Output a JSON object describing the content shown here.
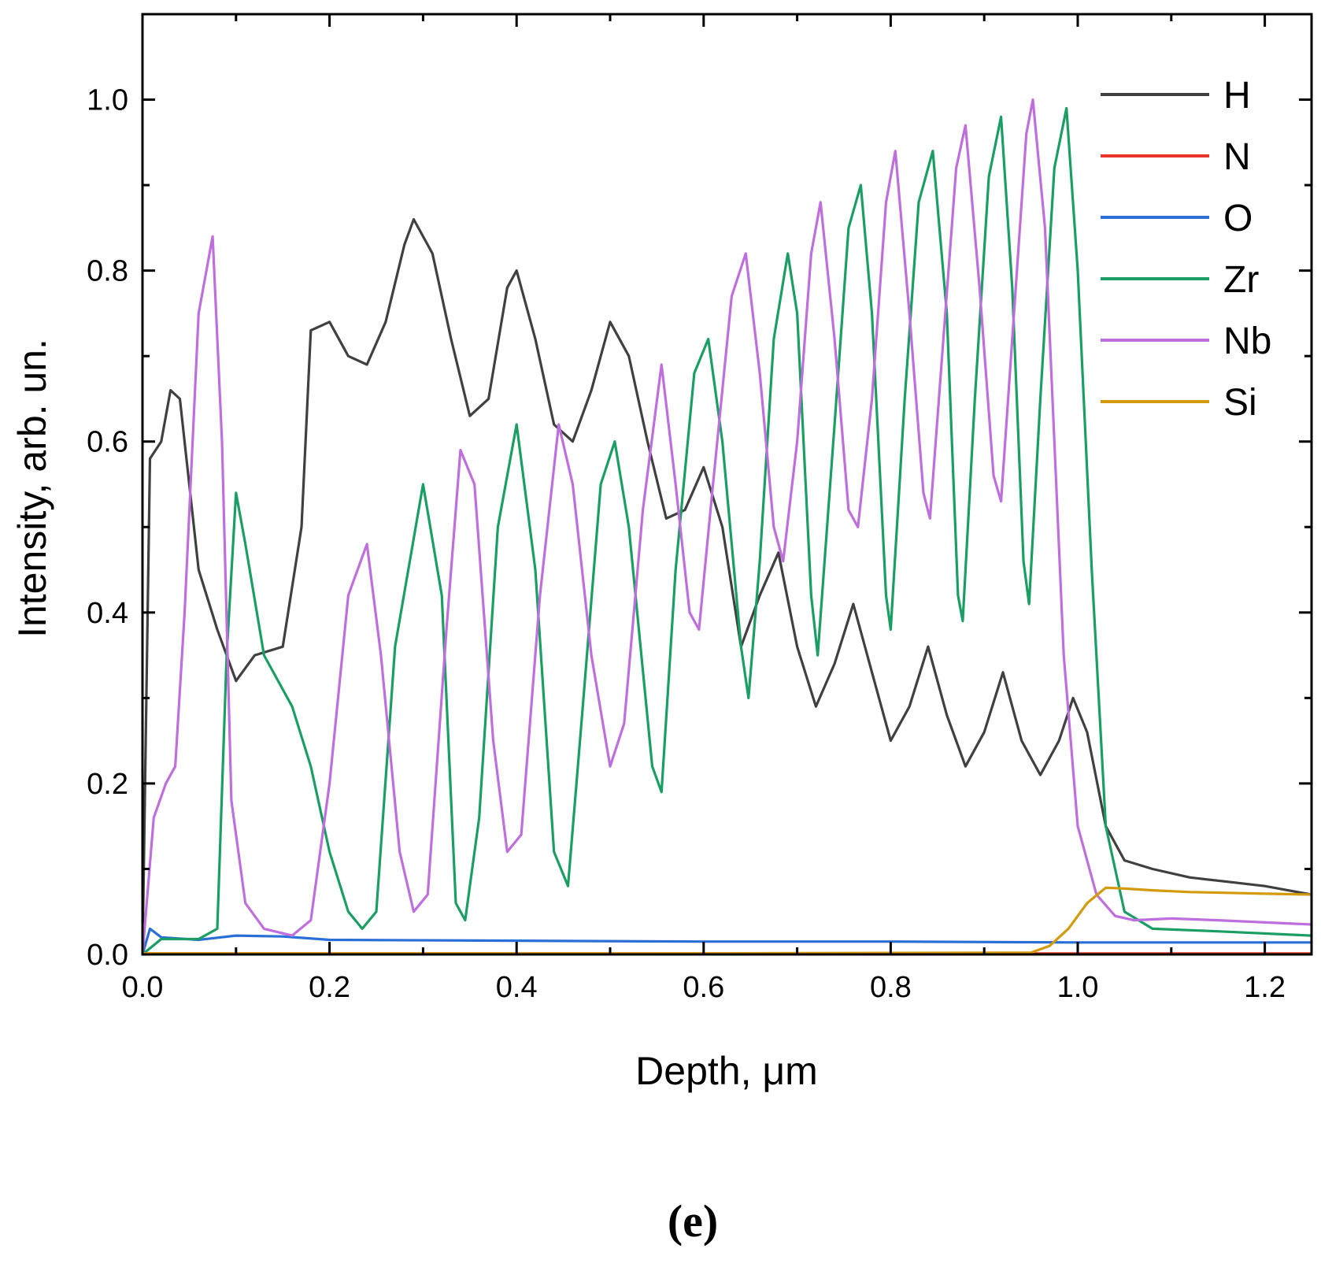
{
  "chart_data": {
    "type": "line",
    "xlabel": "Depth, μm",
    "ylabel": "Intensity, arb. un.",
    "xlim": [
      0.0,
      1.25
    ],
    "ylim": [
      0.0,
      1.1
    ],
    "x_ticks": [
      "0.0",
      "0.2",
      "0.4",
      "0.6",
      "0.8",
      "1.0",
      "1.2"
    ],
    "y_ticks": [
      "0.0",
      "0.2",
      "0.4",
      "0.6",
      "0.8",
      "1.0"
    ],
    "grid": false,
    "legend_position": "top-right",
    "panel_label": "(e)",
    "series": [
      {
        "name": "H",
        "color": "#404040",
        "points": [
          [
            0.0,
            0.0
          ],
          [
            0.008,
            0.58
          ],
          [
            0.02,
            0.6
          ],
          [
            0.03,
            0.66
          ],
          [
            0.04,
            0.65
          ],
          [
            0.05,
            0.55
          ],
          [
            0.06,
            0.45
          ],
          [
            0.08,
            0.38
          ],
          [
            0.1,
            0.32
          ],
          [
            0.12,
            0.35
          ],
          [
            0.15,
            0.36
          ],
          [
            0.17,
            0.5
          ],
          [
            0.18,
            0.73
          ],
          [
            0.2,
            0.74
          ],
          [
            0.22,
            0.7
          ],
          [
            0.24,
            0.69
          ],
          [
            0.26,
            0.74
          ],
          [
            0.28,
            0.83
          ],
          [
            0.29,
            0.86
          ],
          [
            0.31,
            0.82
          ],
          [
            0.33,
            0.72
          ],
          [
            0.35,
            0.63
          ],
          [
            0.37,
            0.65
          ],
          [
            0.39,
            0.78
          ],
          [
            0.4,
            0.8
          ],
          [
            0.42,
            0.72
          ],
          [
            0.44,
            0.62
          ],
          [
            0.46,
            0.6
          ],
          [
            0.48,
            0.66
          ],
          [
            0.5,
            0.74
          ],
          [
            0.52,
            0.7
          ],
          [
            0.54,
            0.6
          ],
          [
            0.56,
            0.51
          ],
          [
            0.58,
            0.52
          ],
          [
            0.6,
            0.57
          ],
          [
            0.62,
            0.5
          ],
          [
            0.64,
            0.36
          ],
          [
            0.66,
            0.42
          ],
          [
            0.68,
            0.47
          ],
          [
            0.7,
            0.36
          ],
          [
            0.72,
            0.29
          ],
          [
            0.74,
            0.34
          ],
          [
            0.76,
            0.41
          ],
          [
            0.78,
            0.33
          ],
          [
            0.8,
            0.25
          ],
          [
            0.82,
            0.29
          ],
          [
            0.84,
            0.36
          ],
          [
            0.86,
            0.28
          ],
          [
            0.88,
            0.22
          ],
          [
            0.9,
            0.26
          ],
          [
            0.92,
            0.33
          ],
          [
            0.94,
            0.25
          ],
          [
            0.96,
            0.21
          ],
          [
            0.98,
            0.25
          ],
          [
            0.995,
            0.3
          ],
          [
            1.01,
            0.26
          ],
          [
            1.03,
            0.15
          ],
          [
            1.05,
            0.11
          ],
          [
            1.08,
            0.1
          ],
          [
            1.12,
            0.09
          ],
          [
            1.16,
            0.085
          ],
          [
            1.2,
            0.08
          ],
          [
            1.25,
            0.07
          ]
        ]
      },
      {
        "name": "N",
        "color": "#e8332a",
        "points": [
          [
            0.0,
            0.001
          ],
          [
            0.5,
            0.001
          ],
          [
            1.0,
            0.001
          ],
          [
            1.25,
            0.001
          ]
        ]
      },
      {
        "name": "O",
        "color": "#2a6fd6",
        "points": [
          [
            0.0,
            0.0
          ],
          [
            0.008,
            0.03
          ],
          [
            0.02,
            0.02
          ],
          [
            0.06,
            0.017
          ],
          [
            0.1,
            0.022
          ],
          [
            0.15,
            0.021
          ],
          [
            0.2,
            0.017
          ],
          [
            0.4,
            0.016
          ],
          [
            0.6,
            0.015
          ],
          [
            0.8,
            0.015
          ],
          [
            1.0,
            0.014
          ],
          [
            1.25,
            0.014
          ]
        ]
      },
      {
        "name": "Zr",
        "color": "#1a9e63",
        "points": [
          [
            0.0,
            0.0
          ],
          [
            0.02,
            0.018
          ],
          [
            0.06,
            0.018
          ],
          [
            0.08,
            0.03
          ],
          [
            0.09,
            0.35
          ],
          [
            0.1,
            0.54
          ],
          [
            0.11,
            0.48
          ],
          [
            0.13,
            0.35
          ],
          [
            0.16,
            0.29
          ],
          [
            0.18,
            0.22
          ],
          [
            0.2,
            0.12
          ],
          [
            0.22,
            0.05
          ],
          [
            0.235,
            0.03
          ],
          [
            0.25,
            0.05
          ],
          [
            0.27,
            0.36
          ],
          [
            0.3,
            0.55
          ],
          [
            0.32,
            0.42
          ],
          [
            0.335,
            0.06
          ],
          [
            0.345,
            0.04
          ],
          [
            0.36,
            0.16
          ],
          [
            0.38,
            0.5
          ],
          [
            0.4,
            0.62
          ],
          [
            0.42,
            0.45
          ],
          [
            0.44,
            0.12
          ],
          [
            0.455,
            0.08
          ],
          [
            0.47,
            0.28
          ],
          [
            0.49,
            0.55
          ],
          [
            0.505,
            0.6
          ],
          [
            0.52,
            0.5
          ],
          [
            0.545,
            0.22
          ],
          [
            0.555,
            0.19
          ],
          [
            0.57,
            0.45
          ],
          [
            0.59,
            0.68
          ],
          [
            0.605,
            0.72
          ],
          [
            0.62,
            0.6
          ],
          [
            0.64,
            0.36
          ],
          [
            0.648,
            0.3
          ],
          [
            0.66,
            0.46
          ],
          [
            0.675,
            0.72
          ],
          [
            0.69,
            0.82
          ],
          [
            0.7,
            0.75
          ],
          [
            0.715,
            0.42
          ],
          [
            0.722,
            0.35
          ],
          [
            0.74,
            0.62
          ],
          [
            0.755,
            0.85
          ],
          [
            0.768,
            0.9
          ],
          [
            0.78,
            0.75
          ],
          [
            0.795,
            0.42
          ],
          [
            0.8,
            0.38
          ],
          [
            0.815,
            0.65
          ],
          [
            0.83,
            0.88
          ],
          [
            0.845,
            0.94
          ],
          [
            0.86,
            0.75
          ],
          [
            0.872,
            0.42
          ],
          [
            0.877,
            0.39
          ],
          [
            0.89,
            0.65
          ],
          [
            0.905,
            0.91
          ],
          [
            0.918,
            0.98
          ],
          [
            0.93,
            0.78
          ],
          [
            0.942,
            0.46
          ],
          [
            0.948,
            0.41
          ],
          [
            0.96,
            0.65
          ],
          [
            0.975,
            0.92
          ],
          [
            0.988,
            0.99
          ],
          [
            1.0,
            0.8
          ],
          [
            1.015,
            0.45
          ],
          [
            1.03,
            0.15
          ],
          [
            1.05,
            0.05
          ],
          [
            1.08,
            0.03
          ],
          [
            1.15,
            0.027
          ],
          [
            1.25,
            0.022
          ]
        ]
      },
      {
        "name": "Nb",
        "color": "#bf6fdd",
        "points": [
          [
            0.0,
            0.0
          ],
          [
            0.012,
            0.16
          ],
          [
            0.025,
            0.2
          ],
          [
            0.035,
            0.22
          ],
          [
            0.045,
            0.4
          ],
          [
            0.06,
            0.75
          ],
          [
            0.075,
            0.84
          ],
          [
            0.085,
            0.6
          ],
          [
            0.095,
            0.18
          ],
          [
            0.11,
            0.06
          ],
          [
            0.13,
            0.03
          ],
          [
            0.16,
            0.022
          ],
          [
            0.18,
            0.04
          ],
          [
            0.2,
            0.2
          ],
          [
            0.22,
            0.42
          ],
          [
            0.24,
            0.48
          ],
          [
            0.255,
            0.35
          ],
          [
            0.275,
            0.12
          ],
          [
            0.29,
            0.05
          ],
          [
            0.305,
            0.07
          ],
          [
            0.325,
            0.38
          ],
          [
            0.34,
            0.59
          ],
          [
            0.355,
            0.55
          ],
          [
            0.375,
            0.25
          ],
          [
            0.39,
            0.12
          ],
          [
            0.405,
            0.14
          ],
          [
            0.425,
            0.42
          ],
          [
            0.445,
            0.62
          ],
          [
            0.46,
            0.55
          ],
          [
            0.48,
            0.35
          ],
          [
            0.5,
            0.22
          ],
          [
            0.515,
            0.27
          ],
          [
            0.535,
            0.52
          ],
          [
            0.555,
            0.69
          ],
          [
            0.57,
            0.55
          ],
          [
            0.585,
            0.4
          ],
          [
            0.595,
            0.38
          ],
          [
            0.61,
            0.55
          ],
          [
            0.63,
            0.77
          ],
          [
            0.645,
            0.82
          ],
          [
            0.66,
            0.68
          ],
          [
            0.675,
            0.5
          ],
          [
            0.685,
            0.46
          ],
          [
            0.7,
            0.6
          ],
          [
            0.715,
            0.82
          ],
          [
            0.725,
            0.88
          ],
          [
            0.74,
            0.72
          ],
          [
            0.755,
            0.52
          ],
          [
            0.765,
            0.5
          ],
          [
            0.78,
            0.65
          ],
          [
            0.795,
            0.88
          ],
          [
            0.805,
            0.94
          ],
          [
            0.82,
            0.75
          ],
          [
            0.835,
            0.54
          ],
          [
            0.842,
            0.51
          ],
          [
            0.855,
            0.7
          ],
          [
            0.87,
            0.92
          ],
          [
            0.88,
            0.97
          ],
          [
            0.895,
            0.78
          ],
          [
            0.91,
            0.56
          ],
          [
            0.918,
            0.53
          ],
          [
            0.93,
            0.72
          ],
          [
            0.945,
            0.96
          ],
          [
            0.952,
            1.0
          ],
          [
            0.965,
            0.85
          ],
          [
            0.975,
            0.6
          ],
          [
            0.985,
            0.35
          ],
          [
            1.0,
            0.15
          ],
          [
            1.02,
            0.07
          ],
          [
            1.04,
            0.045
          ],
          [
            1.06,
            0.04
          ],
          [
            1.1,
            0.042
          ],
          [
            1.15,
            0.04
          ],
          [
            1.25,
            0.035
          ]
        ]
      },
      {
        "name": "Si",
        "color": "#d49a0e",
        "points": [
          [
            0.0,
            0.001
          ],
          [
            0.5,
            0.001
          ],
          [
            0.95,
            0.002
          ],
          [
            0.97,
            0.01
          ],
          [
            0.99,
            0.03
          ],
          [
            1.01,
            0.06
          ],
          [
            1.03,
            0.078
          ],
          [
            1.05,
            0.077
          ],
          [
            1.08,
            0.075
          ],
          [
            1.12,
            0.073
          ],
          [
            1.16,
            0.072
          ],
          [
            1.2,
            0.071
          ],
          [
            1.25,
            0.07
          ]
        ]
      }
    ]
  }
}
